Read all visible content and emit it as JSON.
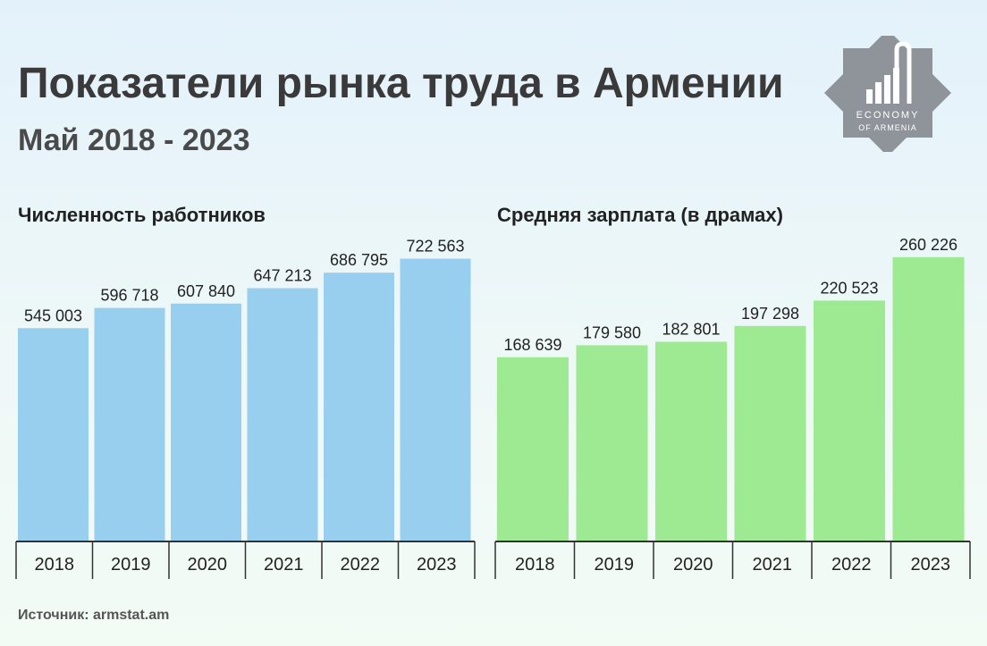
{
  "title": "Показатели рынка труда в Армении",
  "subtitle": "Май 2018 - 2023",
  "source": "Источник: armstat.am",
  "logo": {
    "line1": "ECONOMY",
    "line2": "OF ARMENIA",
    "icon": "economy-of-armenia-logo-icon"
  },
  "colors": {
    "workers_bar": "#99cfee",
    "salary_bar": "#9eea93",
    "axis": "#333333"
  },
  "chart_data": [
    {
      "type": "bar",
      "title": "Численность работников",
      "categories": [
        "2018",
        "2019",
        "2020",
        "2021",
        "2022",
        "2023"
      ],
      "values": [
        545003,
        596718,
        607840,
        647213,
        686795,
        722563
      ],
      "value_labels": [
        "545 003",
        "596 718",
        "607 840",
        "647 213",
        "686 795",
        "722 563"
      ],
      "ylim": [
        0,
        790000
      ],
      "grid": false,
      "xlabel": "",
      "ylabel": ""
    },
    {
      "type": "bar",
      "title": "Средняя зарплата (в драмах)",
      "categories": [
        "2018",
        "2019",
        "2020",
        "2021",
        "2022",
        "2023"
      ],
      "values": [
        168639,
        179580,
        182801,
        197298,
        220523,
        260226
      ],
      "value_labels": [
        "168 639",
        "179 580",
        "182 801",
        "197 298",
        "220 523",
        "260 226"
      ],
      "ylim": [
        0,
        283000
      ],
      "grid": false,
      "xlabel": "",
      "ylabel": ""
    }
  ]
}
